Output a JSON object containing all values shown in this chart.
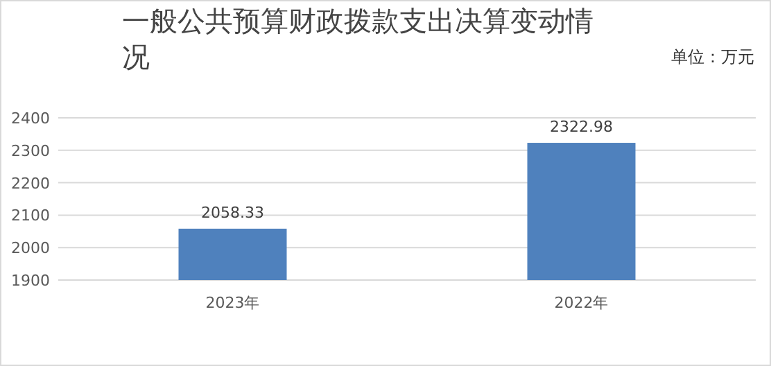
{
  "chart_data": {
    "type": "bar",
    "title": "一般公共预算财政拨款支出决算变动情况",
    "annotations": [
      "单位：万元"
    ],
    "categories": [
      "2023年",
      "2022年"
    ],
    "values": [
      2058.33,
      2322.98
    ],
    "color": "#4f81bd",
    "ylim": [
      1900,
      2400
    ],
    "yticks": [
      1900,
      2000,
      2100,
      2200,
      2300,
      2400
    ],
    "grid": "y",
    "data_labels": true
  }
}
